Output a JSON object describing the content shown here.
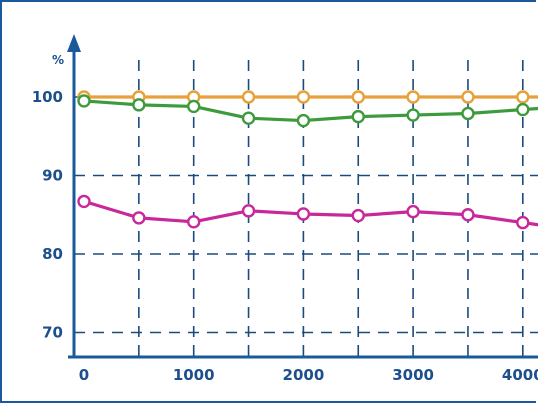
{
  "chart_data": {
    "type": "line",
    "title": "",
    "xlabel": "",
    "ylabel": "%",
    "xlim": [
      0,
      4200
    ],
    "ylim": [
      67,
      109
    ],
    "x_ticks": [
      "0",
      "1000",
      "2000",
      "3000",
      "4000"
    ],
    "y_ticks": [
      "70",
      "80",
      "90",
      "100"
    ],
    "grid": true,
    "x": [
      0,
      500,
      1000,
      1500,
      2000,
      2500,
      3000,
      3500,
      4000,
      4200
    ],
    "series": [
      {
        "color": "#e8a13a",
        "values": [
          100,
          100,
          100,
          100,
          100,
          100,
          100,
          100,
          100,
          100
        ]
      },
      {
        "color": "#3d9a3d",
        "values": [
          99.5,
          99.0,
          98.8,
          97.3,
          97.0,
          97.5,
          97.7,
          97.9,
          98.4,
          98.6
        ]
      },
      {
        "color": "#c8289a",
        "values": [
          86.7,
          84.6,
          84.1,
          85.5,
          85.1,
          84.9,
          85.4,
          85.0,
          84.0,
          83.6
        ]
      }
    ]
  }
}
